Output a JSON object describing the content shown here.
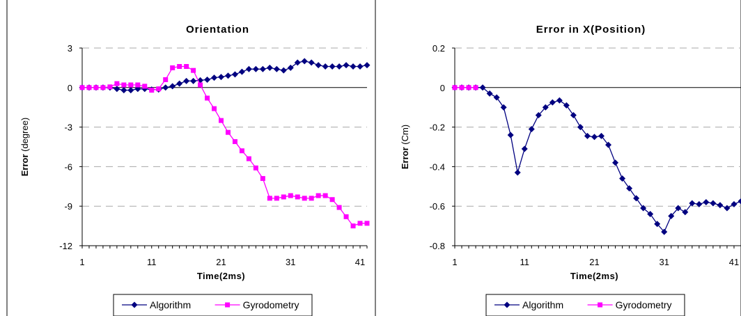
{
  "chart_data": [
    {
      "type": "line",
      "title": "Orientation",
      "xlabel": "Time(2ms)",
      "ylabel_bold": "Error",
      "ylabel_rest": " (degree)",
      "xlim": [
        1,
        42
      ],
      "ylim": [
        -12,
        3
      ],
      "xticks": [
        1,
        11,
        21,
        31,
        41
      ],
      "yticks": [
        3,
        0,
        -3,
        -6,
        -9,
        -12
      ],
      "ytick_labels": [
        "3",
        "0",
        "-3",
        "-6",
        "-9",
        "-12"
      ],
      "legend_placement": "bottom",
      "series": [
        {
          "name": "Algorithm",
          "color": "#000080",
          "marker": "diamond",
          "x": [
            1,
            2,
            3,
            4,
            5,
            6,
            7,
            8,
            9,
            10,
            11,
            12,
            13,
            14,
            15,
            16,
            17,
            18,
            19,
            20,
            21,
            22,
            23,
            24,
            25,
            26,
            27,
            28,
            29,
            30,
            31,
            32,
            33,
            34,
            35,
            36,
            37,
            38,
            39,
            40,
            41,
            42
          ],
          "y": [
            0,
            0,
            0,
            0,
            0,
            -0.1,
            -0.2,
            -0.2,
            -0.1,
            -0.1,
            -0.15,
            -0.15,
            0,
            0.1,
            0.3,
            0.5,
            0.5,
            0.55,
            0.6,
            0.75,
            0.8,
            0.9,
            1.0,
            1.2,
            1.4,
            1.4,
            1.4,
            1.5,
            1.4,
            1.3,
            1.5,
            1.9,
            2.0,
            1.9,
            1.7,
            1.6,
            1.6,
            1.6,
            1.7,
            1.6,
            1.6,
            1.7
          ]
        },
        {
          "name": "Gyrodometry",
          "color": "#FF00FF",
          "marker": "square",
          "x": [
            1,
            2,
            3,
            4,
            5,
            6,
            7,
            8,
            9,
            10,
            11,
            12,
            13,
            14,
            15,
            16,
            17,
            18,
            19,
            20,
            21,
            22,
            23,
            24,
            25,
            26,
            27,
            28,
            29,
            30,
            31,
            32,
            33,
            34,
            35,
            36,
            37,
            38,
            39,
            40,
            41,
            42
          ],
          "y": [
            0,
            0,
            0,
            0,
            0.05,
            0.3,
            0.2,
            0.2,
            0.2,
            0.1,
            -0.2,
            -0.1,
            0.6,
            1.5,
            1.6,
            1.6,
            1.3,
            0.2,
            -0.8,
            -1.6,
            -2.5,
            -3.4,
            -4.1,
            -4.8,
            -5.4,
            -6.1,
            -6.9,
            -8.4,
            -8.4,
            -8.3,
            -8.2,
            -8.3,
            -8.4,
            -8.4,
            -8.2,
            -8.2,
            -8.5,
            -9.1,
            -9.8,
            -10.5,
            -10.3,
            -10.3
          ]
        }
      ]
    },
    {
      "type": "line",
      "title": "Error in X(Position)",
      "xlabel": "Time(2ms)",
      "ylabel_bold": "Error",
      "ylabel_rest": " (Cm)",
      "xlim": [
        1,
        42
      ],
      "ylim": [
        -0.8,
        0.2
      ],
      "xticks": [
        1,
        11,
        21,
        31,
        41
      ],
      "yticks": [
        0.2,
        0,
        -0.2,
        -0.4,
        -0.6,
        -0.8
      ],
      "ytick_labels": [
        "0.2",
        "0",
        "-0.2",
        "-0.4",
        "-0.6",
        "-0.8"
      ],
      "legend_placement": "bottom",
      "series": [
        {
          "name": "Algorithm",
          "color": "#000080",
          "marker": "diamond",
          "x": [
            1,
            2,
            3,
            4,
            5,
            6,
            7,
            8,
            9,
            10,
            11,
            12,
            13,
            14,
            15,
            16,
            17,
            18,
            19,
            20,
            21,
            22,
            23,
            24,
            25,
            26,
            27,
            28,
            29,
            30,
            31,
            32,
            33,
            34,
            35,
            36,
            37,
            38,
            39,
            40,
            41,
            42
          ],
          "y": [
            0,
            0,
            0,
            0,
            0,
            -0.03,
            -0.05,
            -0.1,
            -0.24,
            -0.43,
            -0.31,
            -0.21,
            -0.14,
            -0.1,
            -0.075,
            -0.065,
            -0.09,
            -0.14,
            -0.2,
            -0.245,
            -0.25,
            -0.245,
            -0.29,
            -0.38,
            -0.46,
            -0.51,
            -0.56,
            -0.61,
            -0.64,
            -0.69,
            -0.73,
            -0.65,
            -0.61,
            -0.63,
            -0.585,
            -0.59,
            -0.58,
            -0.585,
            -0.595,
            -0.61,
            -0.59,
            -0.575
          ]
        },
        {
          "name": "Gyrodometry",
          "color": "#FF00FF",
          "marker": "square",
          "x": [
            1,
            2,
            3,
            4
          ],
          "y": [
            0,
            0,
            0,
            0
          ]
        }
      ]
    }
  ]
}
